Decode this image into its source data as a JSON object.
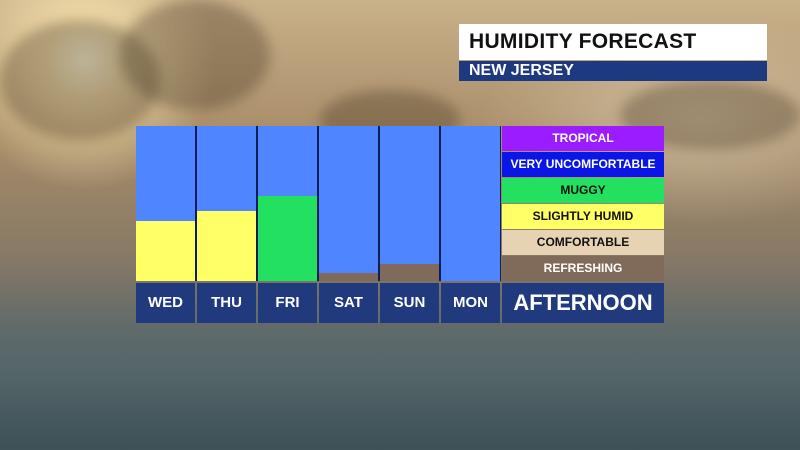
{
  "header": {
    "title": "HUMIDITY FORECAST",
    "subtitle": "NEW JERSEY"
  },
  "footer": {
    "period_label": "AFTERNOON"
  },
  "chart_data": {
    "type": "bar",
    "categories": [
      "WED",
      "THU",
      "FRI",
      "SAT",
      "SUN",
      "MON"
    ],
    "levels": [
      {
        "label": "TROPICAL",
        "color": "#9a1cff",
        "text_color": "#ffffff"
      },
      {
        "label": "VERY UNCOMFORTABLE",
        "color": "#0a16e6",
        "text_color": "#ffffff"
      },
      {
        "label": "MUGGY",
        "color": "#24e060",
        "text_color": "#111111"
      },
      {
        "label": "SLIGHTLY HUMID",
        "color": "#ffff66",
        "text_color": "#111111"
      },
      {
        "label": "COMFORTABLE",
        "color": "#e7d3b3",
        "text_color": "#111111"
      },
      {
        "label": "REFRESHING",
        "color": "#806b5a",
        "text_color": "#ffffff"
      }
    ],
    "values": [
      {
        "category": "WED",
        "level": "SLIGHTLY HUMID",
        "fill_fraction": 0.39
      },
      {
        "category": "THU",
        "level": "SLIGHTLY HUMID",
        "fill_fraction": 0.45
      },
      {
        "category": "FRI",
        "level": "MUGGY",
        "fill_fraction": 0.55
      },
      {
        "category": "SAT",
        "level": "REFRESHING",
        "fill_fraction": 0.05
      },
      {
        "category": "SUN",
        "level": "REFRESHING",
        "fill_fraction": 0.11
      },
      {
        "category": "MON",
        "level": "REFRESHING",
        "fill_fraction": 0.0
      }
    ],
    "background_bar_color": "#4f86ff"
  }
}
